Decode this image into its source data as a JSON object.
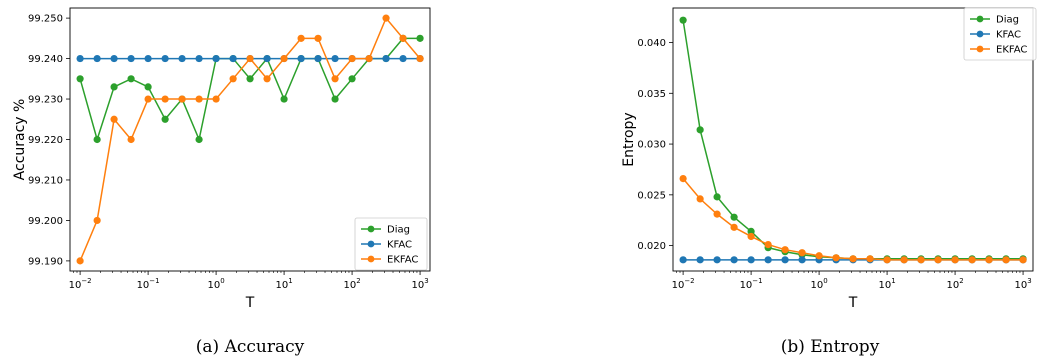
{
  "colors": {
    "Diag": "#2ca02c",
    "KFAC": "#1f77b4",
    "EKFAC": "#ff7f0e"
  },
  "chart_data": [
    {
      "type": "line",
      "caption": "(a) Accuracy",
      "xlabel": "T",
      "ylabel": "Accuracy %",
      "xscale": "log",
      "xlim": [
        0.0071,
        1400
      ],
      "ylim": [
        99.1875,
        99.2525
      ],
      "xticks": [
        {
          "value": 0.01,
          "base": "10",
          "exp": "−2"
        },
        {
          "value": 0.1,
          "base": "10",
          "exp": "−1"
        },
        {
          "value": 1,
          "base": "10",
          "exp": "0"
        },
        {
          "value": 10,
          "base": "10",
          "exp": "1"
        },
        {
          "value": 100,
          "base": "10",
          "exp": "2"
        },
        {
          "value": 1000,
          "base": "10",
          "exp": "3"
        }
      ],
      "yticks": [
        {
          "value": 99.19,
          "label": "99.190"
        },
        {
          "value": 99.2,
          "label": "99.200"
        },
        {
          "value": 99.21,
          "label": "99.210"
        },
        {
          "value": 99.22,
          "label": "99.220"
        },
        {
          "value": 99.23,
          "label": "99.230"
        },
        {
          "value": 99.24,
          "label": "99.240"
        },
        {
          "value": 99.25,
          "label": "99.250"
        }
      ],
      "legend": "lower-right",
      "x": [
        0.01,
        0.0178,
        0.0316,
        0.0562,
        0.1,
        0.178,
        0.316,
        0.562,
        1,
        1.78,
        3.16,
        5.62,
        10,
        17.8,
        31.6,
        56.2,
        100,
        178,
        316,
        562,
        1000
      ],
      "series": [
        {
          "name": "Diag",
          "values": [
            99.235,
            99.22,
            99.233,
            99.235,
            99.233,
            99.225,
            99.23,
            99.22,
            99.24,
            99.24,
            99.235,
            99.24,
            99.23,
            99.24,
            99.24,
            99.23,
            99.235,
            99.24,
            99.24,
            99.245,
            99.245
          ]
        },
        {
          "name": "KFAC",
          "values": [
            99.24,
            99.24,
            99.24,
            99.24,
            99.24,
            99.24,
            99.24,
            99.24,
            99.24,
            99.24,
            99.24,
            99.24,
            99.24,
            99.24,
            99.24,
            99.24,
            99.24,
            99.24,
            99.24,
            99.24,
            99.24
          ]
        },
        {
          "name": "EKFAC",
          "values": [
            99.19,
            99.2,
            99.225,
            99.22,
            99.23,
            99.23,
            99.23,
            99.23,
            99.23,
            99.235,
            99.24,
            99.235,
            99.24,
            99.245,
            99.245,
            99.235,
            99.24,
            99.24,
            99.25,
            99.245,
            99.24
          ]
        }
      ]
    },
    {
      "type": "line",
      "caption": "(b) Entropy",
      "xlabel": "T",
      "ylabel": "Entropy",
      "xscale": "log",
      "xlim": [
        0.0071,
        1400
      ],
      "ylim": [
        0.0175,
        0.0434
      ],
      "xticks": [
        {
          "value": 0.01,
          "base": "10",
          "exp": "−2"
        },
        {
          "value": 0.1,
          "base": "10",
          "exp": "−1"
        },
        {
          "value": 1,
          "base": "10",
          "exp": "0"
        },
        {
          "value": 10,
          "base": "10",
          "exp": "1"
        },
        {
          "value": 100,
          "base": "10",
          "exp": "2"
        },
        {
          "value": 1000,
          "base": "10",
          "exp": "3"
        }
      ],
      "yticks": [
        {
          "value": 0.02,
          "label": "0.020"
        },
        {
          "value": 0.025,
          "label": "0.025"
        },
        {
          "value": 0.03,
          "label": "0.030"
        },
        {
          "value": 0.035,
          "label": "0.035"
        },
        {
          "value": 0.04,
          "label": "0.040"
        }
      ],
      "legend": "top-right",
      "x": [
        0.01,
        0.0178,
        0.0316,
        0.0562,
        0.1,
        0.178,
        0.316,
        0.562,
        1,
        1.78,
        3.16,
        5.62,
        10,
        17.8,
        31.6,
        56.2,
        100,
        178,
        316,
        562,
        1000
      ],
      "series": [
        {
          "name": "Diag",
          "values": [
            0.0422,
            0.0314,
            0.0248,
            0.0228,
            0.0214,
            0.0198,
            0.0194,
            0.0191,
            0.0189,
            0.0188,
            0.0187,
            0.0187,
            0.0187,
            0.0187,
            0.0187,
            0.0187,
            0.0187,
            0.0187,
            0.0187,
            0.0187,
            0.0187
          ]
        },
        {
          "name": "KFAC",
          "values": [
            0.0186,
            0.0186,
            0.0186,
            0.0186,
            0.0186,
            0.0186,
            0.0186,
            0.0186,
            0.0186,
            0.0186,
            0.0186,
            0.0186,
            0.0186,
            0.0186,
            0.0186,
            0.0186,
            0.0186,
            0.0186,
            0.0186,
            0.0186,
            0.0186
          ]
        },
        {
          "name": "EKFAC",
          "values": [
            0.0266,
            0.0246,
            0.0231,
            0.0218,
            0.0209,
            0.0201,
            0.0196,
            0.0193,
            0.019,
            0.0188,
            0.0187,
            0.0187,
            0.0186,
            0.0186,
            0.0186,
            0.0186,
            0.0186,
            0.0186,
            0.0186,
            0.0186,
            0.0186
          ]
        }
      ]
    }
  ]
}
